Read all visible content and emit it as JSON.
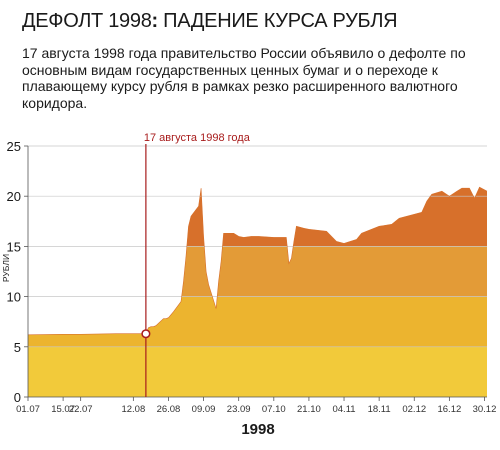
{
  "header": {
    "title_main": "ДЕФОЛТ 1998",
    "title_colon": ":",
    "title_rest": " ПАДЕНИЕ КУРСА РУБЛЯ",
    "lead": "17 августа 1998 года правительство России объявило о дефолте по основным видам государственных ценных бумаг и о переходе к плавающему курсу рубля в рамках резко расширенного валютного коридора."
  },
  "chart_data": {
    "type": "area",
    "title": "ДЕФОЛТ 1998: ПАДЕНИЕ КУРСА РУБЛЯ",
    "xlabel": "1998",
    "ylabel": "РУБЛИ",
    "ylim": [
      0,
      25
    ],
    "xlim": [
      "1998-07-01",
      "1998-12-31"
    ],
    "y_ticks": [
      0,
      5,
      10,
      15,
      20,
      25
    ],
    "x_ticks": [
      {
        "date": "1998-07-01",
        "label": "01.07"
      },
      {
        "date": "1998-07-15",
        "label": "15.07"
      },
      {
        "date": "1998-07-22",
        "label": "22.07"
      },
      {
        "date": "1998-08-12",
        "label": "12.08"
      },
      {
        "date": "1998-08-26",
        "label": "26.08"
      },
      {
        "date": "1998-09-09",
        "label": "09.09"
      },
      {
        "date": "1998-09-23",
        "label": "23.09"
      },
      {
        "date": "1998-10-07",
        "label": "07.10"
      },
      {
        "date": "1998-10-21",
        "label": "21.10"
      },
      {
        "date": "1998-11-04",
        "label": "04.11"
      },
      {
        "date": "1998-11-18",
        "label": "18.11"
      },
      {
        "date": "1998-12-02",
        "label": "02.12"
      },
      {
        "date": "1998-12-16",
        "label": "16.12"
      },
      {
        "date": "1998-12-30",
        "label": "30.12"
      }
    ],
    "band_edges": [
      5,
      10,
      15
    ],
    "band_colors": [
      "#f2ca3a",
      "#ecb42f",
      "#e39b37",
      "#d7702b"
    ],
    "grid": true,
    "annotation": {
      "date": "1998-08-17",
      "value": 6.3,
      "label": "17 августа 1998 года",
      "color": "#a81c1c"
    },
    "series": [
      {
        "x": [
          "1998-07-01",
          "1998-07-15",
          "1998-07-22",
          "1998-08-05",
          "1998-08-12",
          "1998-08-14",
          "1998-08-17",
          "1998-08-18",
          "1998-08-19",
          "1998-08-20",
          "1998-08-21",
          "1998-08-24",
          "1998-08-25",
          "1998-08-26",
          "1998-08-28",
          "1998-08-31",
          "1998-09-01",
          "1998-09-02",
          "1998-09-03",
          "1998-09-04",
          "1998-09-07",
          "1998-09-08",
          "1998-09-09",
          "1998-09-10",
          "1998-09-11",
          "1998-09-14",
          "1998-09-15",
          "1998-09-16",
          "1998-09-17",
          "1998-09-18",
          "1998-09-21",
          "1998-09-23",
          "1998-09-25",
          "1998-09-28",
          "1998-10-01",
          "1998-10-07",
          "1998-10-12",
          "1998-10-13",
          "1998-10-14",
          "1998-10-15",
          "1998-10-16",
          "1998-10-19",
          "1998-10-21",
          "1998-10-28",
          "1998-11-01",
          "1998-11-04",
          "1998-11-09",
          "1998-11-11",
          "1998-11-18",
          "1998-11-23",
          "1998-11-26",
          "1998-12-02",
          "1998-12-05",
          "1998-12-07",
          "1998-12-09",
          "1998-12-13",
          "1998-12-16",
          "1998-12-19",
          "1998-12-21",
          "1998-12-24",
          "1998-12-26",
          "1998-12-28",
          "1998-12-31"
        ],
        "y": [
          6.2,
          6.25,
          6.25,
          6.3,
          6.3,
          6.3,
          6.3,
          6.9,
          7.0,
          7.0,
          7.1,
          7.8,
          7.8,
          7.9,
          8.5,
          9.5,
          11.5,
          14.0,
          17.0,
          18.0,
          19.0,
          20.8,
          16.0,
          12.5,
          11.2,
          8.8,
          11.5,
          13.5,
          16.3,
          16.3,
          16.3,
          16.0,
          15.9,
          16.0,
          16.0,
          15.9,
          15.9,
          13.3,
          13.8,
          15.5,
          17.0,
          16.8,
          16.7,
          16.5,
          15.5,
          15.3,
          15.7,
          16.3,
          17.0,
          17.2,
          17.8,
          18.2,
          18.4,
          19.5,
          20.2,
          20.5,
          20.0,
          20.5,
          20.8,
          20.8,
          19.8,
          20.9,
          20.5
        ]
      }
    ]
  }
}
